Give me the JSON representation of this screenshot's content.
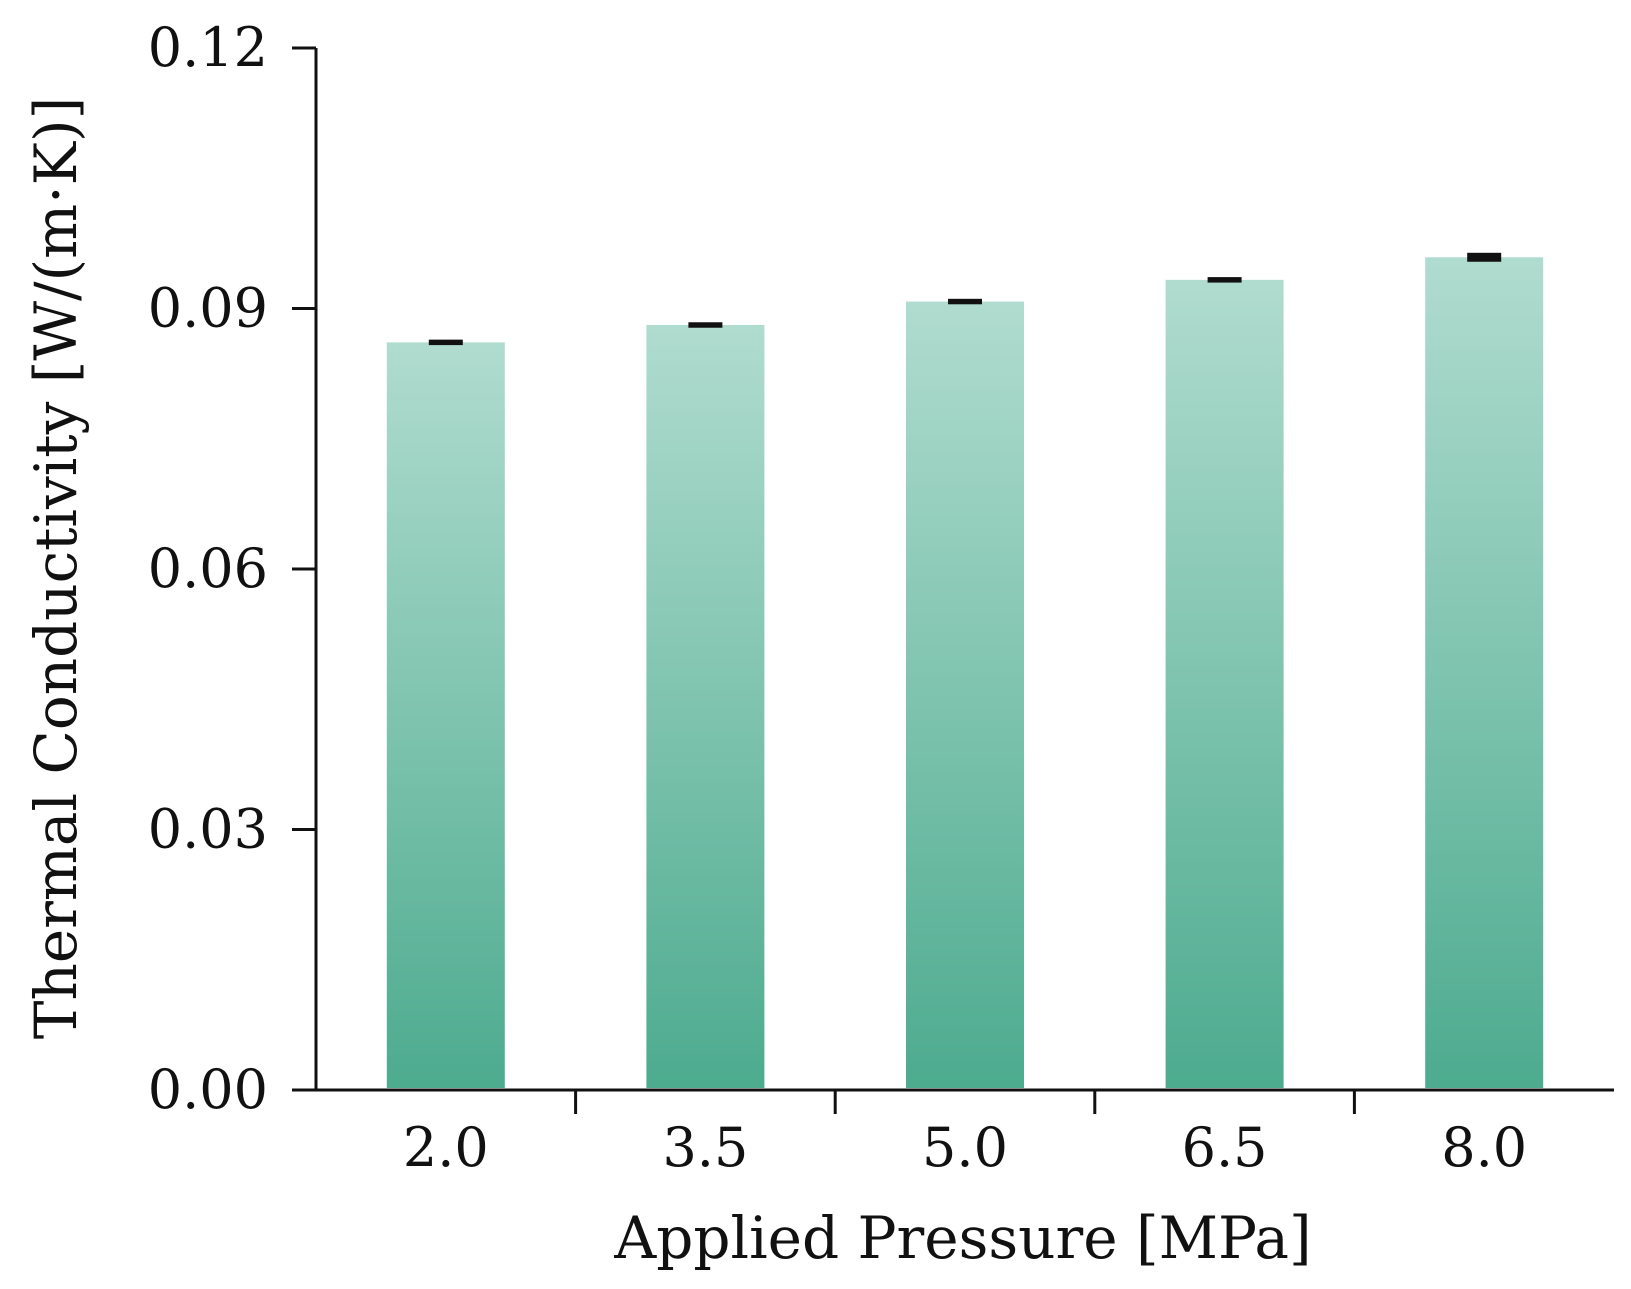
{
  "chart_data": {
    "type": "bar",
    "title": "",
    "xlabel": "Applied Pressure [MPa]",
    "ylabel": "Thermal Conductivity [W/(m·K)]",
    "categories": [
      "2.0",
      "3.5",
      "5.0",
      "6.5",
      "8.0"
    ],
    "values": [
      0.0861,
      0.0881,
      0.0908,
      0.0933,
      0.0959
    ],
    "errors": [
      0.0002,
      0.0002,
      0.0002,
      0.0002,
      0.0004
    ],
    "ylim": [
      0,
      0.12
    ],
    "yticks": [
      "0.00",
      "0.03",
      "0.06",
      "0.09",
      "0.12"
    ],
    "grid": false,
    "colors": {
      "bar_top": "#b0dccf",
      "bar_bottom": "#4dab8e",
      "error_bar": "#111111",
      "axis": "#111111"
    }
  }
}
